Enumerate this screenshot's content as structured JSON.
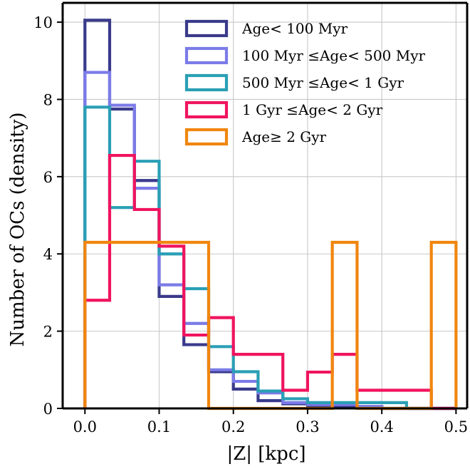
{
  "chart_data": {
    "type": "histogram-step",
    "xlabel": "|Z| [kpc]",
    "ylabel": "Number of OCs (density)",
    "xlim": [
      -0.03,
      0.515
    ],
    "ylim": [
      0,
      10.5
    ],
    "xticks": [
      "0.0",
      "0.1",
      "0.2",
      "0.3",
      "0.4",
      "0.5"
    ],
    "xtick_values": [
      0.0,
      0.1,
      0.2,
      0.3,
      0.4,
      0.5
    ],
    "yticks": [
      "0",
      "2",
      "4",
      "6",
      "8",
      "10"
    ],
    "ytick_values": [
      0,
      2,
      4,
      6,
      8,
      10
    ],
    "grid": true,
    "legend_position": "top-right",
    "bin_edges": [
      0.0,
      0.0333,
      0.0667,
      0.1,
      0.1333,
      0.1667,
      0.2,
      0.2333,
      0.2667,
      0.3,
      0.3333,
      0.3667,
      0.4,
      0.4333,
      0.4667,
      0.5
    ],
    "series": [
      {
        "name": "Age< 100 Myr",
        "color": "#3a3a8c",
        "values": [
          10.05,
          7.75,
          5.9,
          2.9,
          1.65,
          0.95,
          0.5,
          0.2,
          0.12,
          0.05,
          0.05,
          0.05,
          0.0,
          0.0,
          0.0
        ]
      },
      {
        "name": "100 Myr ≤Age< 500 Myr",
        "color": "#7b7be8",
        "values": [
          8.7,
          7.85,
          5.7,
          3.2,
          2.2,
          1.0,
          0.7,
          0.4,
          0.15,
          0.1,
          0.1,
          0.05,
          0.0,
          0.0,
          0.0
        ]
      },
      {
        "name": "500 Myr ≤Age< 1 Gyr",
        "color": "#2a9fb5",
        "values": [
          7.8,
          5.2,
          6.4,
          4.0,
          3.1,
          1.6,
          0.95,
          0.45,
          0.25,
          0.15,
          0.15,
          0.15,
          0.15,
          0.0,
          0.0
        ]
      },
      {
        "name": "1 Gyr ≤Age< 2 Gyr",
        "color": "#f0145f",
        "values": [
          2.8,
          6.55,
          5.15,
          4.2,
          1.9,
          2.35,
          1.4,
          1.4,
          0.47,
          0.94,
          1.4,
          0.47,
          0.47,
          0.47,
          0.0
        ]
      },
      {
        "name": "Age≥ 2 Gyr",
        "color": "#f0860f",
        "values": [
          4.3,
          4.3,
          4.3,
          4.3,
          4.3,
          0.0,
          0.0,
          0.0,
          0.0,
          0.0,
          4.3,
          0.0,
          0.0,
          0.0,
          4.3
        ]
      }
    ]
  }
}
